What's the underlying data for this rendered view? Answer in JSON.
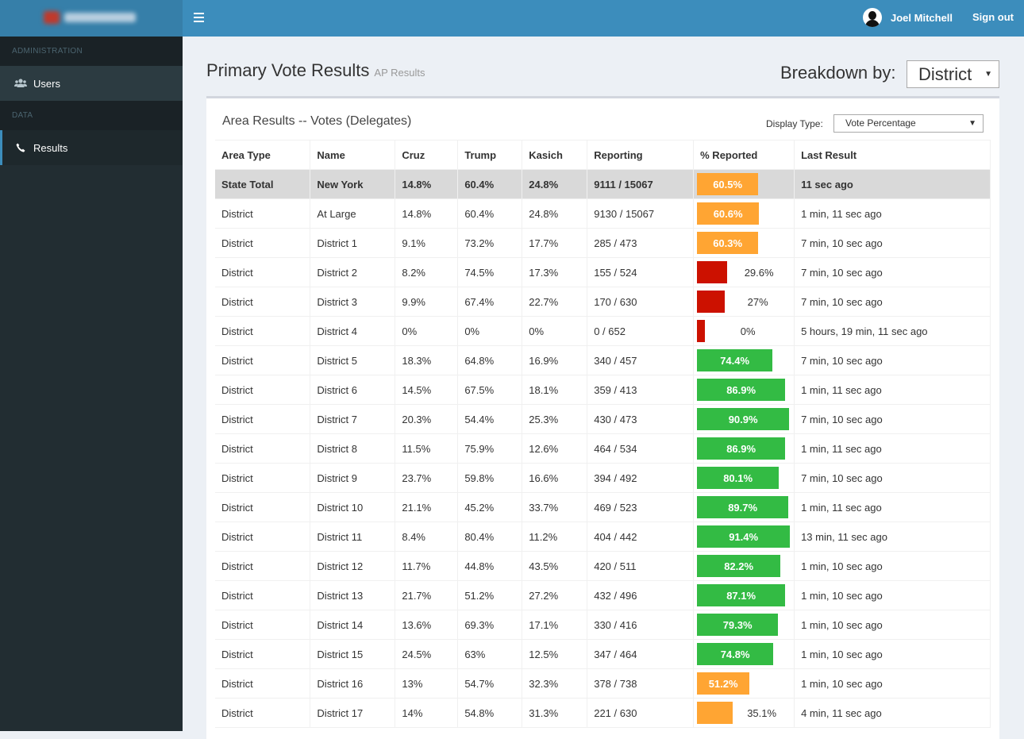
{
  "header": {
    "user_name": "Joel Mitchell",
    "sign_out": "Sign out"
  },
  "sidebar": {
    "sections": [
      {
        "header": "ADMINISTRATION",
        "items": [
          {
            "label": "Users",
            "icon": "users-icon"
          }
        ]
      },
      {
        "header": "DATA",
        "items": [
          {
            "label": "Results",
            "icon": "phone-icon"
          }
        ]
      }
    ]
  },
  "page": {
    "title": "Primary Vote Results",
    "subtitle": "AP Results",
    "breakdown_label": "Breakdown by:",
    "breakdown_value": "District"
  },
  "box": {
    "title": "Area Results -- Votes (Delegates)",
    "display_type_label": "Display Type:",
    "display_type_value": "Vote Percentage"
  },
  "colors": {
    "low": "#cc1100",
    "mid": "#ffa533",
    "high": "#33bb44"
  },
  "table": {
    "columns": [
      "Area Type",
      "Name",
      "Cruz",
      "Trump",
      "Kasich",
      "Reporting",
      "% Reported",
      "Last Result"
    ],
    "rows": [
      {
        "area": "State Total",
        "name": "New York",
        "cruz": "14.8%",
        "trump": "60.4%",
        "kasich": "24.8%",
        "reporting": "9111 / 15067",
        "pct": 60.5,
        "pct_label": "60.5%",
        "color": "mid",
        "last": "11 sec ago",
        "state": true
      },
      {
        "area": "District",
        "name": "At Large",
        "cruz": "14.8%",
        "trump": "60.4%",
        "kasich": "24.8%",
        "reporting": "9130 / 15067",
        "pct": 60.6,
        "pct_label": "60.6%",
        "color": "mid",
        "last": "1 min, 11 sec ago"
      },
      {
        "area": "District",
        "name": "District 1",
        "cruz": "9.1%",
        "trump": "73.2%",
        "kasich": "17.7%",
        "reporting": "285 / 473",
        "pct": 60.3,
        "pct_label": "60.3%",
        "color": "mid",
        "last": "7 min, 10 sec ago"
      },
      {
        "area": "District",
        "name": "District 2",
        "cruz": "8.2%",
        "trump": "74.5%",
        "kasich": "17.3%",
        "reporting": "155 / 524",
        "pct": 29.6,
        "pct_label": "29.6%",
        "color": "low",
        "last": "7 min, 10 sec ago"
      },
      {
        "area": "District",
        "name": "District 3",
        "cruz": "9.9%",
        "trump": "67.4%",
        "kasich": "22.7%",
        "reporting": "170 / 630",
        "pct": 27,
        "pct_label": "27%",
        "color": "low",
        "last": "7 min, 10 sec ago"
      },
      {
        "area": "District",
        "name": "District 4",
        "cruz": "0%",
        "trump": "0%",
        "kasich": "0%",
        "reporting": "0 / 652",
        "pct": 0,
        "pct_label": "0%",
        "color": "low",
        "last": "5 hours, 19 min, 11 sec ago"
      },
      {
        "area": "District",
        "name": "District 5",
        "cruz": "18.3%",
        "trump": "64.8%",
        "kasich": "16.9%",
        "reporting": "340 / 457",
        "pct": 74.4,
        "pct_label": "74.4%",
        "color": "high",
        "last": "7 min, 10 sec ago"
      },
      {
        "area": "District",
        "name": "District 6",
        "cruz": "14.5%",
        "trump": "67.5%",
        "kasich": "18.1%",
        "reporting": "359 / 413",
        "pct": 86.9,
        "pct_label": "86.9%",
        "color": "high",
        "last": "1 min, 11 sec ago"
      },
      {
        "area": "District",
        "name": "District 7",
        "cruz": "20.3%",
        "trump": "54.4%",
        "kasich": "25.3%",
        "reporting": "430 / 473",
        "pct": 90.9,
        "pct_label": "90.9%",
        "color": "high",
        "last": "7 min, 10 sec ago"
      },
      {
        "area": "District",
        "name": "District 8",
        "cruz": "11.5%",
        "trump": "75.9%",
        "kasich": "12.6%",
        "reporting": "464 / 534",
        "pct": 86.9,
        "pct_label": "86.9%",
        "color": "high",
        "last": "1 min, 11 sec ago"
      },
      {
        "area": "District",
        "name": "District 9",
        "cruz": "23.7%",
        "trump": "59.8%",
        "kasich": "16.6%",
        "reporting": "394 / 492",
        "pct": 80.1,
        "pct_label": "80.1%",
        "color": "high",
        "last": "7 min, 10 sec ago"
      },
      {
        "area": "District",
        "name": "District 10",
        "cruz": "21.1%",
        "trump": "45.2%",
        "kasich": "33.7%",
        "reporting": "469 / 523",
        "pct": 89.7,
        "pct_label": "89.7%",
        "color": "high",
        "last": "1 min, 11 sec ago"
      },
      {
        "area": "District",
        "name": "District 11",
        "cruz": "8.4%",
        "trump": "80.4%",
        "kasich": "11.2%",
        "reporting": "404 / 442",
        "pct": 91.4,
        "pct_label": "91.4%",
        "color": "high",
        "last": "13 min, 11 sec ago"
      },
      {
        "area": "District",
        "name": "District 12",
        "cruz": "11.7%",
        "trump": "44.8%",
        "kasich": "43.5%",
        "reporting": "420 / 511",
        "pct": 82.2,
        "pct_label": "82.2%",
        "color": "high",
        "last": "1 min, 10 sec ago"
      },
      {
        "area": "District",
        "name": "District 13",
        "cruz": "21.7%",
        "trump": "51.2%",
        "kasich": "27.2%",
        "reporting": "432 / 496",
        "pct": 87.1,
        "pct_label": "87.1%",
        "color": "high",
        "last": "1 min, 10 sec ago"
      },
      {
        "area": "District",
        "name": "District 14",
        "cruz": "13.6%",
        "trump": "69.3%",
        "kasich": "17.1%",
        "reporting": "330 / 416",
        "pct": 79.3,
        "pct_label": "79.3%",
        "color": "high",
        "last": "1 min, 10 sec ago"
      },
      {
        "area": "District",
        "name": "District 15",
        "cruz": "24.5%",
        "trump": "63%",
        "kasich": "12.5%",
        "reporting": "347 / 464",
        "pct": 74.8,
        "pct_label": "74.8%",
        "color": "high",
        "last": "1 min, 10 sec ago"
      },
      {
        "area": "District",
        "name": "District 16",
        "cruz": "13%",
        "trump": "54.7%",
        "kasich": "32.3%",
        "reporting": "378 / 738",
        "pct": 51.2,
        "pct_label": "51.2%",
        "color": "mid",
        "last": "1 min, 10 sec ago"
      },
      {
        "area": "District",
        "name": "District 17",
        "cruz": "14%",
        "trump": "54.8%",
        "kasich": "31.3%",
        "reporting": "221 / 630",
        "pct": 35.1,
        "pct_label": "35.1%",
        "color": "mid",
        "last": "4 min, 11 sec ago"
      }
    ]
  }
}
